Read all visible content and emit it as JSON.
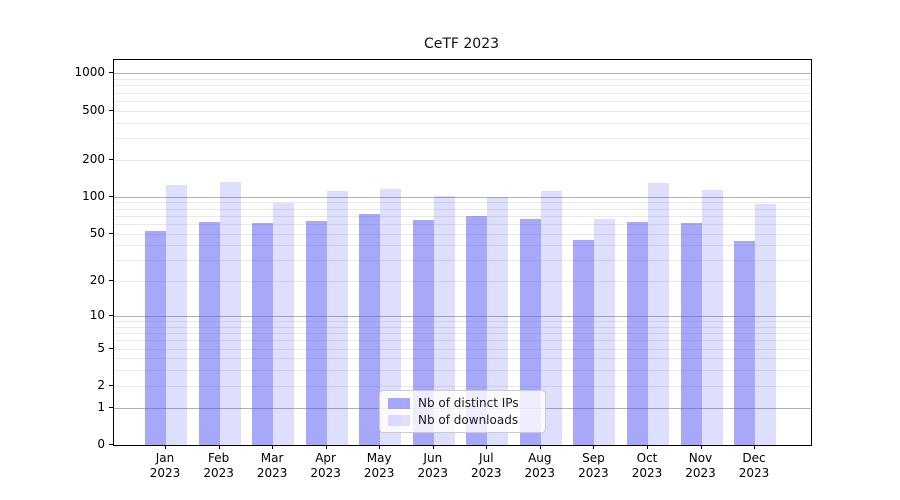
{
  "figure": {
    "title": "CeTF 2023",
    "background_color": "#ffffff"
  },
  "chart_data": {
    "type": "bar",
    "title": "CeTF 2023",
    "x_categories": [
      "Jan",
      "Feb",
      "Mar",
      "Apr",
      "May",
      "Jun",
      "Jul",
      "Aug",
      "Sep",
      "Oct",
      "Nov",
      "Dec"
    ],
    "x_year": "2023",
    "series": [
      {
        "name": "Nb of distinct IPs",
        "color": "rgba(88,88,246,0.52)",
        "values": [
          52,
          62,
          61,
          63,
          72,
          65,
          70,
          66,
          44,
          62,
          61,
          43
        ]
      },
      {
        "name": "Nb of downloads",
        "color": "rgba(88,88,246,0.20)",
        "values": [
          125,
          133,
          89,
          112,
          116,
          102,
          100,
          112,
          66,
          129,
          114,
          87
        ]
      }
    ],
    "yscale": "log1p",
    "ylim": [
      0,
      1250
    ],
    "y_ticks": [
      0,
      1,
      2,
      5,
      10,
      20,
      50,
      100,
      200,
      500,
      1000
    ],
    "y_tick_labels": [
      "0",
      "1",
      "2",
      "5",
      "10",
      "20",
      "50",
      "100",
      "200",
      "500",
      "1000"
    ],
    "grid": "on",
    "major_gridline_values": [
      1,
      10,
      100,
      1000
    ],
    "major_grid_color": "#b0b0b0",
    "minor_grid_color": "#e9e9e9",
    "legend_position": "lower center",
    "legend_items": [
      "Nb of distinct IPs",
      "Nb of downloads"
    ]
  }
}
